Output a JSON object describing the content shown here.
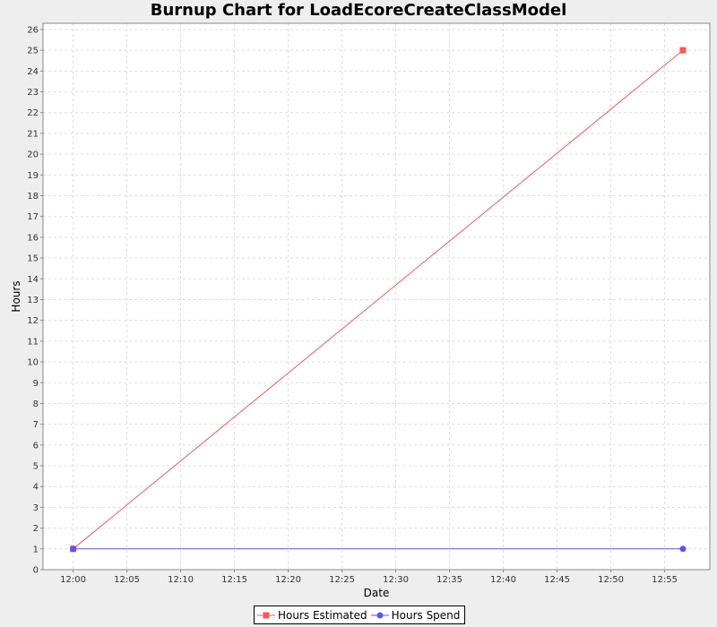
{
  "chart_data": {
    "type": "line",
    "title": "Burnup Chart for LoadEcoreCreateClassModel",
    "xlabel": "Date",
    "ylabel": "Hours",
    "x_tick_labels": [
      "12:00",
      "12:05",
      "12:10",
      "12:15",
      "12:20",
      "12:25",
      "12:30",
      "12:35",
      "12:40",
      "12:45",
      "12:50",
      "12:55"
    ],
    "x_tick_minutes": [
      0,
      5,
      10,
      15,
      20,
      25,
      30,
      35,
      40,
      45,
      50,
      55
    ],
    "xlim_minutes": [
      -2.8,
      59.2
    ],
    "ylim": [
      0,
      26.3
    ],
    "y_ticks": [
      0,
      1,
      2,
      3,
      4,
      5,
      6,
      7,
      8,
      9,
      10,
      11,
      12,
      13,
      14,
      15,
      16,
      17,
      18,
      19,
      20,
      21,
      22,
      23,
      24,
      25,
      26
    ],
    "grid": true,
    "legend_position": "bottom",
    "series": [
      {
        "name": "Hours Estimated",
        "color": "#ff5555",
        "marker": "square",
        "x_minutes": [
          0,
          56.7
        ],
        "values": [
          1,
          25
        ]
      },
      {
        "name": "Hours Spend",
        "color": "#5555ff",
        "marker": "circle",
        "x_minutes": [
          0,
          56.7
        ],
        "values": [
          1,
          1
        ]
      }
    ]
  }
}
